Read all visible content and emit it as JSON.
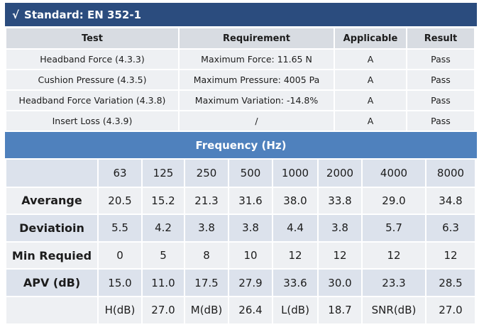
{
  "standard": {
    "check": "√",
    "title": "Standard: EN 352-1"
  },
  "test_table": {
    "headers": [
      "Test",
      "Requirement",
      "Applicable",
      "Result"
    ],
    "rows": [
      {
        "test": "Headband Force (4.3.3)",
        "requirement": "Maximum Force: 11.65 N",
        "applicable": "A",
        "result": "Pass"
      },
      {
        "test": "Cushion Pressure (4.3.5)",
        "requirement": "Maximum Pressure: 4005 Pa",
        "applicable": "A",
        "result": "Pass"
      },
      {
        "test": "Headband Force Variation (4.3.8)",
        "requirement": "Maximum Variation: -14.8%",
        "applicable": "A",
        "result": "Pass"
      },
      {
        "test": "Insert Loss (4.3.9)",
        "requirement": "/",
        "applicable": "A",
        "result": "Pass"
      }
    ]
  },
  "frequency": {
    "title": "Frequency (Hz)",
    "header": [
      "",
      "63",
      "125",
      "250",
      "500",
      "1000",
      "2000",
      "4000",
      "8000"
    ],
    "rows": [
      [
        "Averange",
        "20.5",
        "15.2",
        "21.3",
        "31.6",
        "38.0",
        "33.8",
        "29.0",
        "34.8"
      ],
      [
        "Deviatioin",
        "5.5",
        "4.2",
        "3.8",
        "3.8",
        "4.4",
        "3.8",
        "5.7",
        "6.3"
      ],
      [
        "Min Requied",
        "0",
        "5",
        "8",
        "10",
        "12",
        "12",
        "12",
        "12"
      ],
      [
        "APV (dB)",
        "15.0",
        "11.0",
        "17.5",
        "27.9",
        "33.6",
        "30.0",
        "23.3",
        "28.5"
      ],
      [
        "",
        "H(dB)",
        "27.0",
        "M(dB)",
        "26.4",
        "L(dB)",
        "18.7",
        "SNR(dB)",
        "27.0"
      ]
    ]
  },
  "colors": {
    "title_bar": "#2b4c7e",
    "frequency_bar": "#4f81bd",
    "header_row": "#d8dce2",
    "row_light": "#eef0f3",
    "row_dark": "#dce2ec"
  }
}
